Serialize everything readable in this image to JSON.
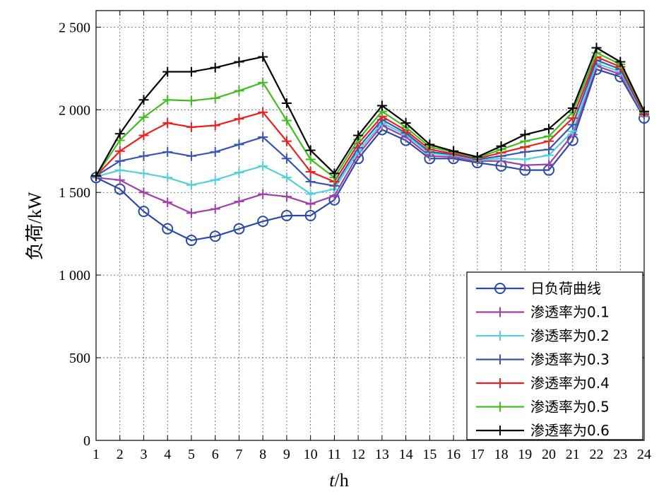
{
  "chart_data": {
    "type": "line",
    "x": [
      1,
      2,
      3,
      4,
      5,
      6,
      7,
      8,
      9,
      10,
      11,
      12,
      13,
      14,
      15,
      16,
      17,
      18,
      19,
      20,
      21,
      22,
      23,
      24
    ],
    "xticks": [
      "1",
      "2",
      "3",
      "4",
      "5",
      "6",
      "7",
      "8",
      "9",
      "10",
      "11",
      "12",
      "13",
      "14",
      "15",
      "16",
      "17",
      "18",
      "19",
      "20",
      "21",
      "22",
      "23",
      "24"
    ],
    "yticks": [
      "0",
      "500",
      "1 000",
      "1 500",
      "2 000",
      "2 500"
    ],
    "ytick_values": [
      0,
      500,
      1000,
      1500,
      2000,
      2500
    ],
    "xlim": [
      1,
      24
    ],
    "ylim": [
      0,
      2600
    ],
    "xlabel_italic": "t",
    "xlabel_rest": "/h",
    "ylabel": "负荷/kW",
    "grid": true,
    "legend_position": "bottom-right",
    "series": [
      {
        "name": "日负荷曲线",
        "color": "#2b4aa6",
        "marker": "circle",
        "values": [
          1590,
          1520,
          1385,
          1280,
          1210,
          1235,
          1280,
          1325,
          1360,
          1360,
          1455,
          1705,
          1880,
          1815,
          1705,
          1705,
          1680,
          1660,
          1635,
          1635,
          1815,
          2245,
          2200,
          1950
        ]
      },
      {
        "name": "渗透率为0.1",
        "color": "#a040a8",
        "marker": "plus",
        "values": [
          1590,
          1575,
          1500,
          1440,
          1375,
          1400,
          1445,
          1490,
          1475,
          1430,
          1480,
          1730,
          1905,
          1835,
          1720,
          1715,
          1690,
          1690,
          1665,
          1670,
          1850,
          2265,
          2215,
          1960
        ]
      },
      {
        "name": "渗透率为0.2",
        "color": "#55cfd8",
        "marker": "plus",
        "values": [
          1595,
          1635,
          1615,
          1590,
          1545,
          1575,
          1620,
          1660,
          1590,
          1490,
          1520,
          1750,
          1920,
          1850,
          1735,
          1725,
          1695,
          1705,
          1700,
          1725,
          1870,
          2280,
          2230,
          1965
        ]
      },
      {
        "name": "渗透率为0.3",
        "color": "#3a55b0",
        "marker": "plus",
        "values": [
          1600,
          1690,
          1720,
          1745,
          1720,
          1745,
          1790,
          1835,
          1705,
          1565,
          1540,
          1770,
          1940,
          1860,
          1745,
          1730,
          1700,
          1720,
          1745,
          1760,
          1910,
          2300,
          2245,
          1970
        ]
      },
      {
        "name": "渗透率为0.4",
        "color": "#e82020",
        "marker": "plus",
        "values": [
          1600,
          1750,
          1845,
          1920,
          1895,
          1905,
          1945,
          1985,
          1810,
          1625,
          1565,
          1795,
          1960,
          1875,
          1760,
          1735,
          1705,
          1740,
          1775,
          1810,
          1950,
          2320,
          2260,
          1975
        ]
      },
      {
        "name": "渗透率为0.5",
        "color": "#44bb22",
        "marker": "plus",
        "values": [
          1600,
          1815,
          1955,
          2060,
          2055,
          2070,
          2115,
          2165,
          1935,
          1700,
          1590,
          1820,
          1990,
          1895,
          1775,
          1745,
          1710,
          1760,
          1810,
          1840,
          1985,
          2345,
          2275,
          1985
        ]
      },
      {
        "name": "渗透率为0.6",
        "color": "#000000",
        "marker": "plus",
        "values": [
          1600,
          1855,
          2060,
          2230,
          2230,
          2255,
          2290,
          2320,
          2040,
          1755,
          1615,
          1845,
          2025,
          1920,
          1790,
          1750,
          1715,
          1780,
          1850,
          1885,
          2010,
          2375,
          2290,
          1990
        ]
      }
    ]
  }
}
